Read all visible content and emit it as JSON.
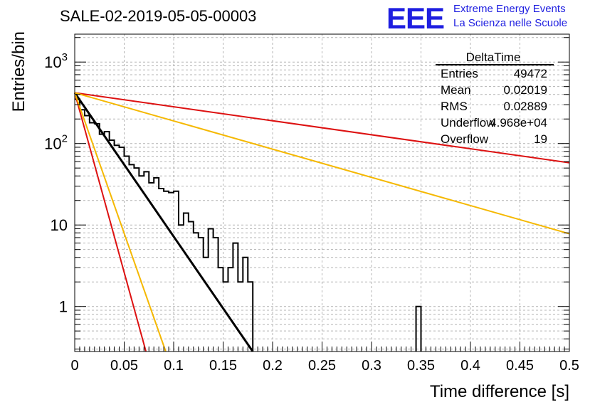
{
  "header": {
    "run_title": "SALE-02-2019-05-05-00003",
    "logo_text": "EEE",
    "logo_line1": "Extreme Energy Events",
    "logo_line2": "La Scienza nelle Scuole",
    "logo_color": "#1e1ee0"
  },
  "stats": {
    "title": "DeltaTime",
    "rows": [
      {
        "label": "Entries",
        "value": "49472"
      },
      {
        "label": "Mean",
        "value": "0.02019"
      },
      {
        "label": "RMS",
        "value": "0.02889"
      },
      {
        "label": "Underflow",
        "value": "4.968e+04"
      },
      {
        "label": "Overflow",
        "value": "19"
      }
    ]
  },
  "chart_data": {
    "type": "histogram",
    "title": "",
    "xlabel": "Time difference [s]",
    "ylabel": "Entries/bin",
    "xlim": [
      0,
      0.5
    ],
    "ylim": [
      0.28,
      2200
    ],
    "yscale": "log",
    "grid": true,
    "x_ticks": [
      "0",
      "0.05",
      "0.1",
      "0.15",
      "0.2",
      "0.25",
      "0.3",
      "0.35",
      "0.4",
      "0.45",
      "0.5"
    ],
    "y_ticks": [
      "1",
      "10",
      "10^2",
      "10^3"
    ],
    "bin_width": 0.005,
    "histogram": {
      "name": "DeltaTime",
      "color": "#000000",
      "bin_low_edges": [
        0,
        0.005,
        0.01,
        0.015,
        0.02,
        0.025,
        0.03,
        0.035,
        0.04,
        0.045,
        0.05,
        0.055,
        0.06,
        0.065,
        0.07,
        0.075,
        0.08,
        0.085,
        0.09,
        0.095,
        0.1,
        0.105,
        0.11,
        0.115,
        0.12,
        0.125,
        0.13,
        0.135,
        0.14,
        0.145,
        0.15,
        0.155,
        0.16,
        0.165,
        0.17,
        0.175,
        0.345
      ],
      "counts": [
        350,
        260,
        220,
        180,
        175,
        130,
        140,
        110,
        95,
        90,
        70,
        55,
        50,
        40,
        45,
        33,
        38,
        28,
        26,
        25,
        26,
        10,
        14,
        11,
        8,
        7,
        4,
        9,
        7,
        3,
        2,
        3,
        6,
        2,
        4,
        2,
        1
      ]
    },
    "lines": [
      {
        "name": "fit",
        "color": "#000000",
        "x": [
          0,
          0.18
        ],
        "y": [
          420,
          0.28
        ]
      },
      {
        "name": "fast-red",
        "color": "#dd1111",
        "x": [
          0,
          0.072
        ],
        "y": [
          420,
          0.28
        ]
      },
      {
        "name": "fast-orange",
        "color": "#f5b800",
        "x": [
          0,
          0.092
        ],
        "y": [
          420,
          0.28
        ]
      },
      {
        "name": "slow-red",
        "color": "#dd1111",
        "x": [
          0,
          0.5
        ],
        "y": [
          420,
          58
        ]
      },
      {
        "name": "slow-orange",
        "color": "#f5b800",
        "x": [
          0,
          0.5
        ],
        "y": [
          420,
          7.8
        ]
      }
    ]
  }
}
